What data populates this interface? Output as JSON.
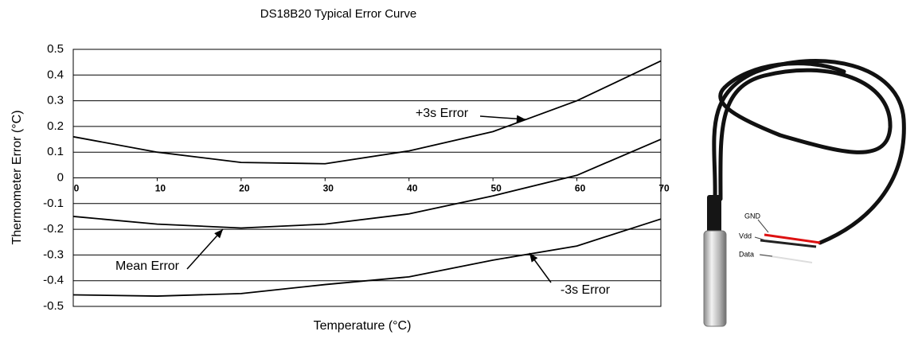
{
  "chart_data": {
    "type": "line",
    "title": "DS18B20 Typical Error Curve",
    "x_label": "Temperature (°C)",
    "y_label": "Thermometer Error (°C)",
    "x": [
      0,
      10,
      20,
      30,
      40,
      50,
      60,
      70
    ],
    "series": [
      {
        "name": "+3s Error",
        "color": "#000000",
        "values": [
          0.16,
          0.1,
          0.06,
          0.055,
          0.105,
          0.18,
          0.3,
          0.455
        ]
      },
      {
        "name": "Mean Error",
        "color": "#000000",
        "values": [
          -0.15,
          -0.18,
          -0.195,
          -0.18,
          -0.14,
          -0.07,
          0.01,
          0.15
        ]
      },
      {
        "name": "-3s Error",
        "color": "#000000",
        "values": [
          -0.455,
          -0.46,
          -0.45,
          -0.415,
          -0.385,
          -0.32,
          -0.265,
          -0.16
        ]
      }
    ],
    "xlim": [
      0,
      70
    ],
    "xticks": [
      0,
      10,
      20,
      30,
      40,
      50,
      60,
      70
    ],
    "ylim": [
      -0.5,
      0.5
    ],
    "yticks": [
      0.5,
      0.4,
      0.3,
      0.2,
      0.1,
      0,
      -0.1,
      -0.2,
      -0.3,
      -0.4,
      -0.5
    ],
    "grid": true
  },
  "photo_labels": [
    "GND",
    "Vdd",
    "Data"
  ]
}
